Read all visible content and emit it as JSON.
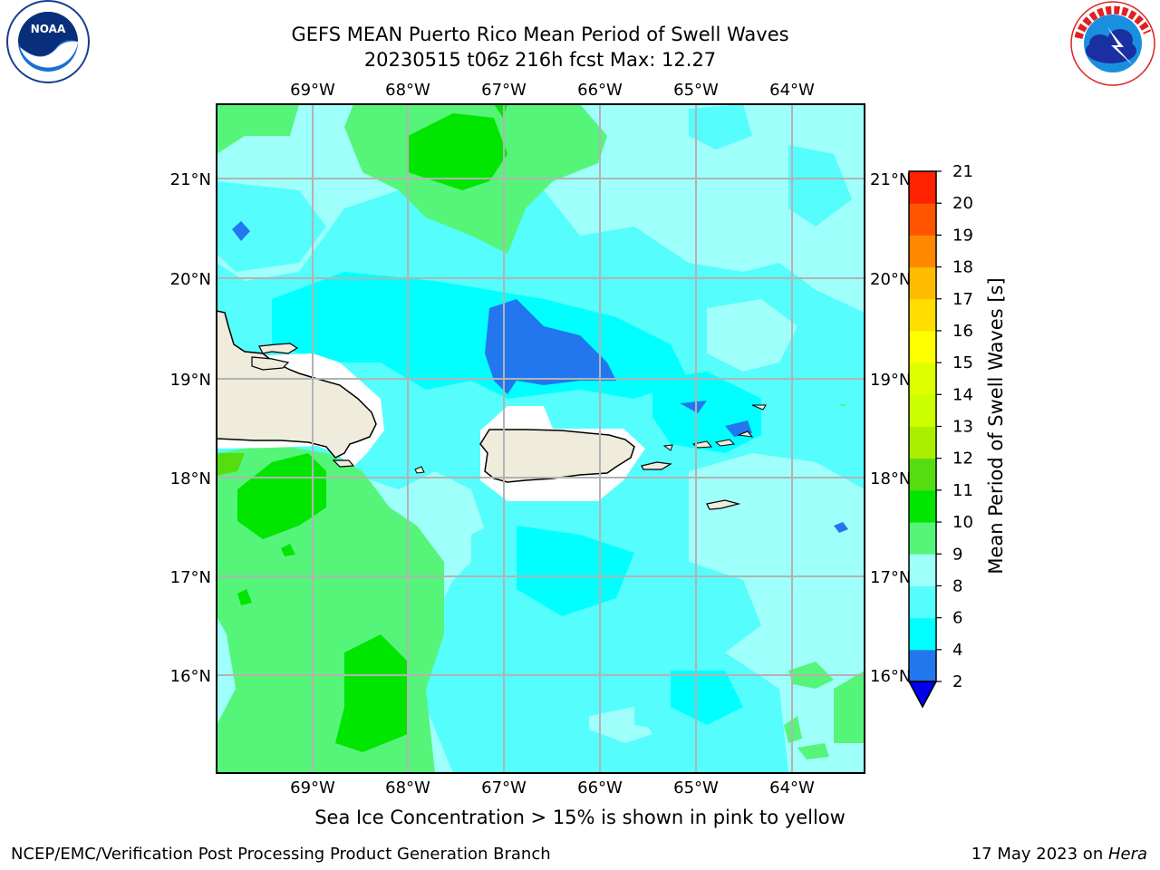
{
  "header": {
    "title_line1": "GEFS MEAN Puerto Rico Mean Period of Swell Waves",
    "title_line2": "20230515 t06z 216h fcst   Max: 12.27"
  },
  "logos": {
    "left": {
      "name": "noaa-logo",
      "text": "NOAA",
      "ring_text": "NATIONAL OCEANIC AND ATMOSPHERIC ADMINISTRATION · U.S. DEPARTMENT OF COMMERCE"
    },
    "right": {
      "name": "nws-logo",
      "ring_text": "NATIONAL WEATHER SERVICE"
    }
  },
  "map": {
    "lon_labels": [
      "69°W",
      "68°W",
      "67°W",
      "66°W",
      "65°W",
      "64°W"
    ],
    "lat_labels": [
      "21°N",
      "20°N",
      "19°N",
      "18°N",
      "17°N",
      "16°N"
    ],
    "gridlines": true,
    "land_color": "#efecdc",
    "ocean_base_color": "#55fdfd"
  },
  "colorbar": {
    "label": "Mean Period of Swell Waves [s]",
    "ticks": [
      "2",
      "4",
      "6",
      "8",
      "9",
      "10",
      "11",
      "12",
      "13",
      "14",
      "15",
      "16",
      "17",
      "18",
      "19",
      "20",
      "21"
    ],
    "colors": [
      "#2277ee",
      "#00ffff",
      "#55fdfd",
      "#9ffffa",
      "#55f57a",
      "#00e600",
      "#55dd11",
      "#aaee00",
      "#ccff00",
      "#ddff00",
      "#ffff00",
      "#ffdd00",
      "#ffbb00",
      "#ff8800",
      "#ff5500",
      "#ff2200"
    ],
    "under_color": "#0000ee",
    "top_color": "#ff0000"
  },
  "notes": {
    "sea_ice": "Sea Ice Concentration > 15% is shown in pink to yellow"
  },
  "footer": {
    "left": "NCEP/EMC/Verification Post Processing Product Generation Branch",
    "right_prefix": "17 May 2023 on ",
    "right_host": "Hera"
  }
}
